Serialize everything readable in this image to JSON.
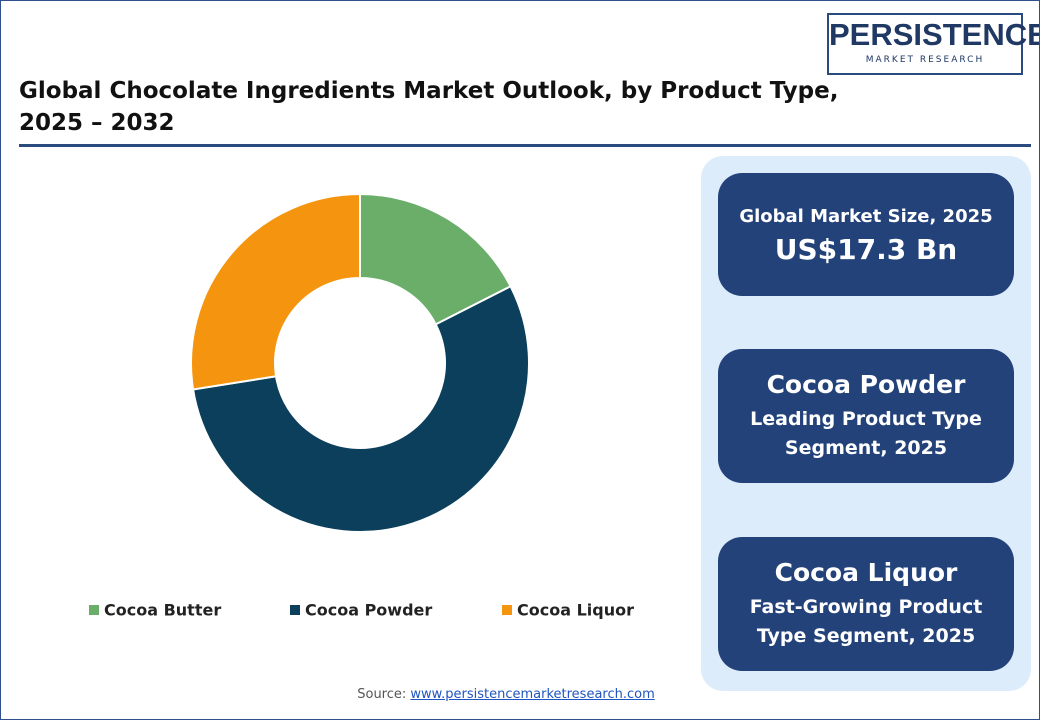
{
  "header": {
    "title_lines": [
      "Global Chocolate Ingredients Market Outlook, by Product Type,",
      "2025 – 2032"
    ],
    "logo": {
      "name": "PERSISTENCE",
      "tagline": "MARKET RESEARCH"
    }
  },
  "chart_data": {
    "type": "donut",
    "categories": [
      "Cocoa Butter",
      "Cocoa Powder",
      "Cocoa Liquor"
    ],
    "values": [
      17.5,
      55,
      27.5
    ],
    "colors": [
      "#6aae6a",
      "#0b3f5c",
      "#f5950f"
    ],
    "legend": "bottom"
  },
  "cards": [
    {
      "title": "Global Market Size, 2025",
      "value": "US$17.3 Bn"
    },
    {
      "title": "Cocoa Powder",
      "value": "Leading Product Type Segment, 2025"
    },
    {
      "title": "Cocoa Liquor",
      "value": "Fast-Growing Product Type Segment, 2025"
    }
  ],
  "source": {
    "label": "Source:",
    "link": "www.persistencemarketresearch.com"
  }
}
